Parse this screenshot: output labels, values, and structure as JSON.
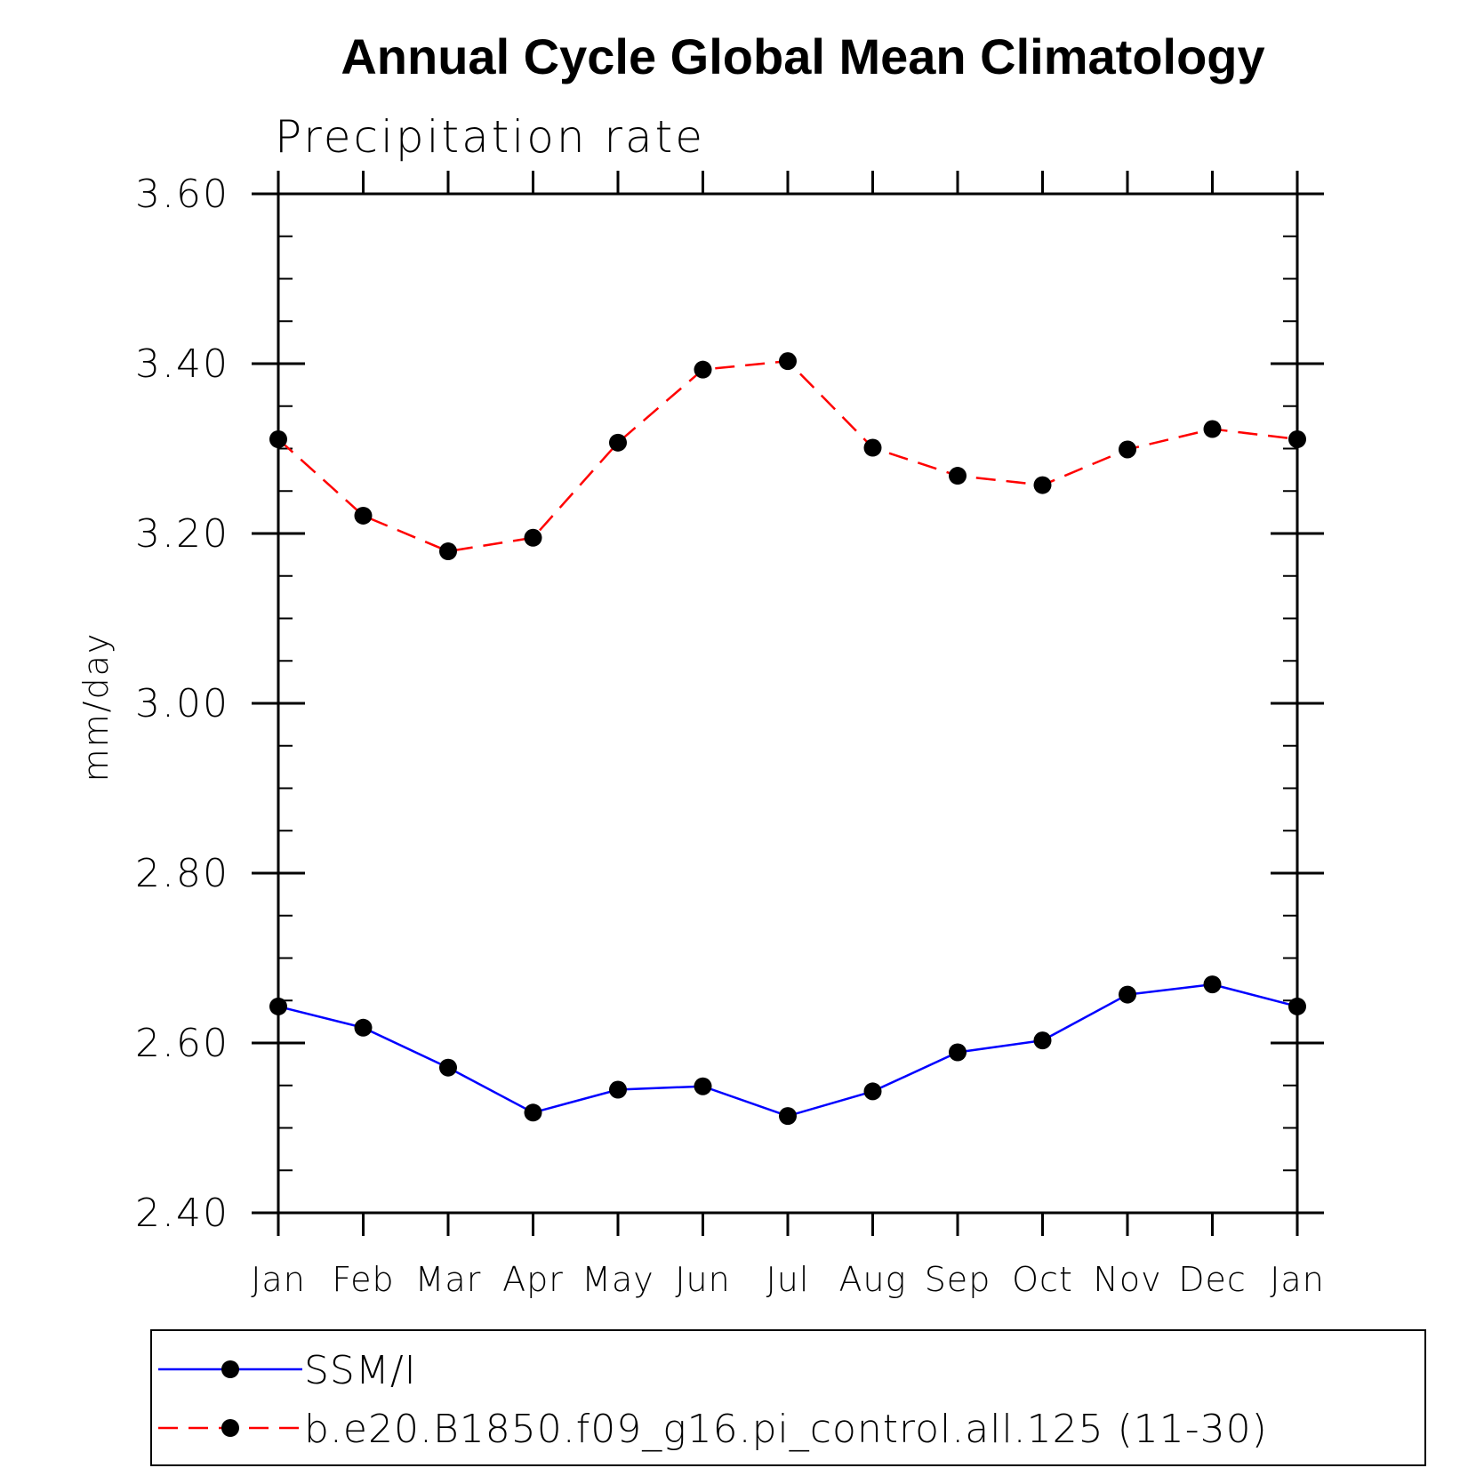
{
  "chart_data": {
    "type": "line",
    "title": "Annual Cycle Global Mean Climatology",
    "subtitle": "Precipitation rate",
    "xlabel": "",
    "ylabel": "mm/day",
    "categories": [
      "Jan",
      "Feb",
      "Mar",
      "Apr",
      "May",
      "Jun",
      "Jul",
      "Aug",
      "Sep",
      "Oct",
      "Nov",
      "Dec",
      "Jan"
    ],
    "ylim": [
      2.4,
      3.6
    ],
    "yticks": [
      "2.40",
      "2.60",
      "2.80",
      "3.00",
      "3.20",
      "3.40",
      "3.60"
    ],
    "legend_position": "bottom",
    "series": [
      {
        "name": "SSM/I",
        "color": "#0000ff",
        "style": "solid",
        "marker": "filled-circle",
        "values": [
          2.643,
          2.618,
          2.571,
          2.518,
          2.545,
          2.549,
          2.514,
          2.543,
          2.589,
          2.603,
          2.657,
          2.669,
          2.643
        ]
      },
      {
        "name": "b.e20.B1850.f09_g16.pi_control.all.125 (11-30)",
        "color": "#ff0000",
        "style": "dashed",
        "marker": "filled-circle",
        "values": [
          3.311,
          3.221,
          3.179,
          3.195,
          3.307,
          3.393,
          3.403,
          3.301,
          3.268,
          3.257,
          3.299,
          3.323,
          3.311
        ]
      }
    ]
  }
}
